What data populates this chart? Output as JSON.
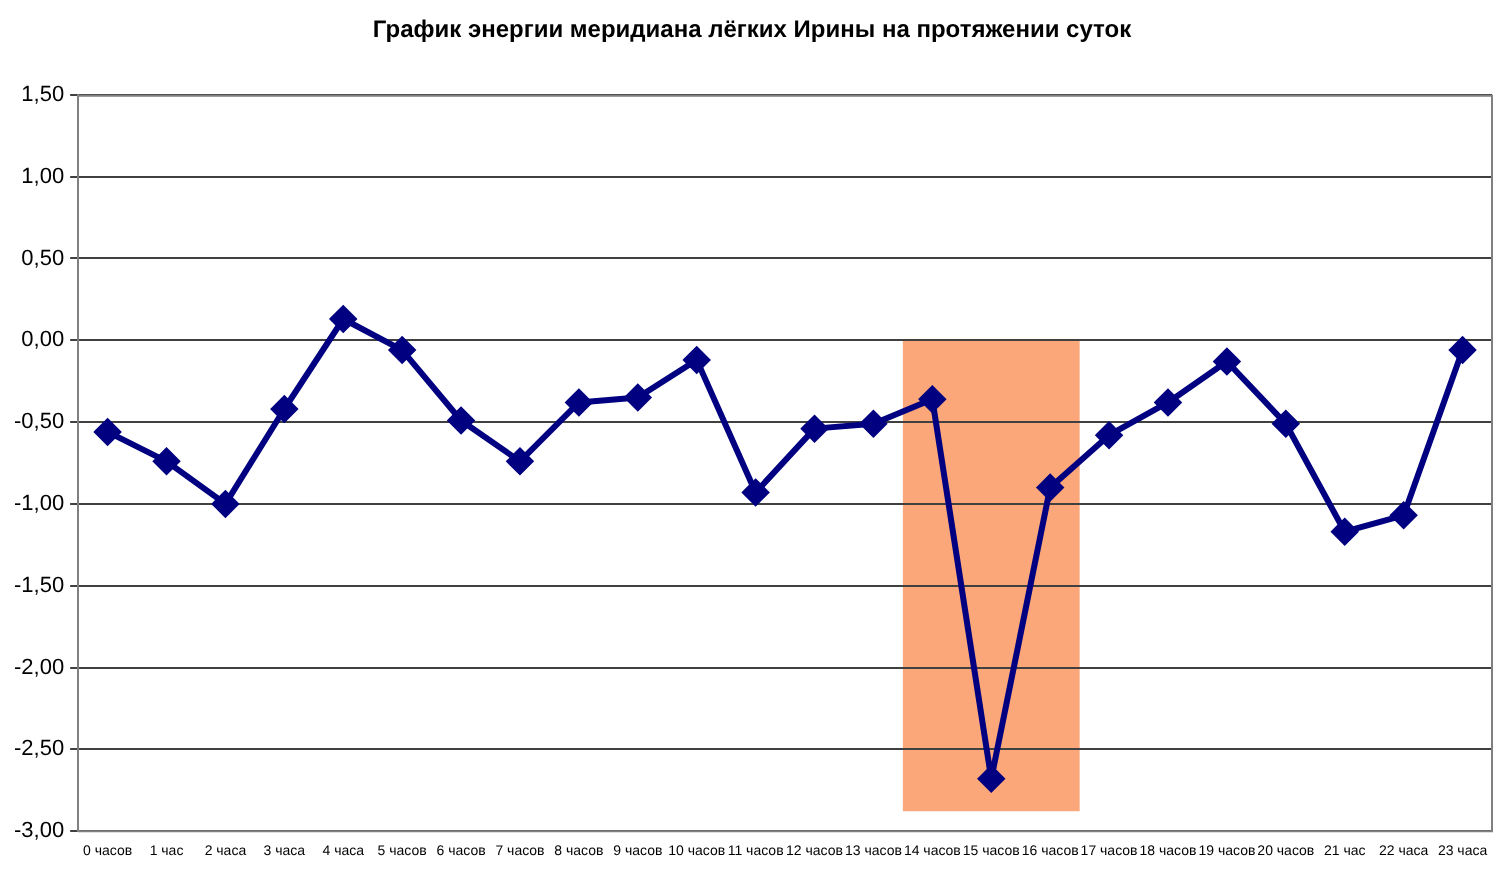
{
  "chart_data": {
    "type": "line",
    "title": "График энергии меридиана лёгких Ирины на протяжении суток",
    "categories": [
      "0 часов",
      "1 час",
      "2 часа",
      "3 часа",
      "4 часа",
      "5 часов",
      "6 часов",
      "7 часов",
      "8 часов",
      "9 часов",
      "10 часов",
      "11 часов",
      "12 часов",
      "13 часов",
      "14 часов",
      "15 часов",
      "16 часов",
      "17 часов",
      "18 часов",
      "19 часов",
      "20 часов",
      "21 час",
      "22 часа",
      "23 часа"
    ],
    "series": [
      {
        "color": "#000080",
        "values": [
          -0.56,
          -0.74,
          -1.0,
          -0.42,
          0.13,
          -0.06,
          -0.49,
          -0.74,
          -0.38,
          -0.35,
          -0.12,
          -0.93,
          -0.54,
          -0.51,
          -0.36,
          -2.68,
          -0.9,
          -0.58,
          -0.38,
          -0.13,
          -0.51,
          -1.17,
          -1.07,
          -0.06
        ]
      }
    ],
    "ylim": [
      -3,
      1.5
    ],
    "yticks": [
      {
        "value": -3,
        "label": "-3,00"
      },
      {
        "value": -2.5,
        "label": "-2,50"
      },
      {
        "value": -2,
        "label": "-2,00"
      },
      {
        "value": -1.5,
        "label": "-1,50"
      },
      {
        "value": -1,
        "label": "-1,00"
      },
      {
        "value": -0.5,
        "label": "-0,50"
      },
      {
        "value": 0,
        "label": "0,00"
      },
      {
        "value": 0.5,
        "label": "0,50"
      },
      {
        "value": 1,
        "label": "1,00"
      },
      {
        "value": 1.5,
        "label": "1,50"
      }
    ],
    "bands": [
      {
        "axis": "x",
        "from": "14 часов",
        "to": "16 часов",
        "color": "#fba77a"
      }
    ],
    "grid": "y",
    "legend": false,
    "marker": "diamond",
    "line_style": "solid"
  }
}
